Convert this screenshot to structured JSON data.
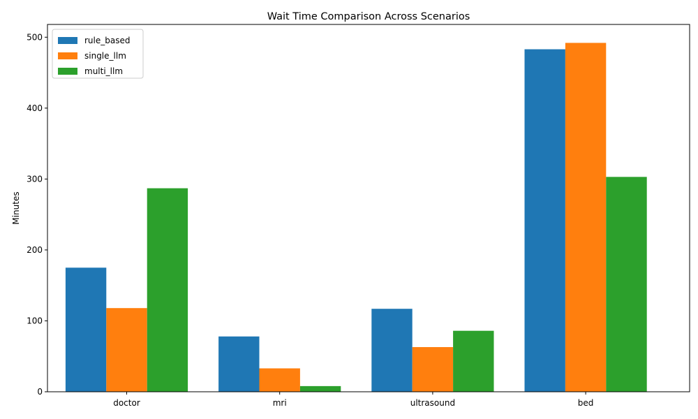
{
  "chart_data": {
    "type": "bar",
    "title": "Wait Time Comparison Across Scenarios",
    "xlabel": "",
    "ylabel": "Minutes",
    "categories": [
      "doctor",
      "mri",
      "ultrasound",
      "bed"
    ],
    "series": [
      {
        "name": "rule_based",
        "color": "#1f77b4",
        "values": [
          175,
          78,
          117,
          483
        ]
      },
      {
        "name": "single_llm",
        "color": "#ff7f0e",
        "values": [
          118,
          33,
          63,
          492
        ]
      },
      {
        "name": "multi_llm",
        "color": "#2ca02c",
        "values": [
          287,
          8,
          86,
          303
        ]
      }
    ],
    "ylim": [
      0,
      518
    ],
    "yticks": [
      0,
      100,
      200,
      300,
      400,
      500
    ],
    "grid": false,
    "legend_position": "top-left"
  }
}
